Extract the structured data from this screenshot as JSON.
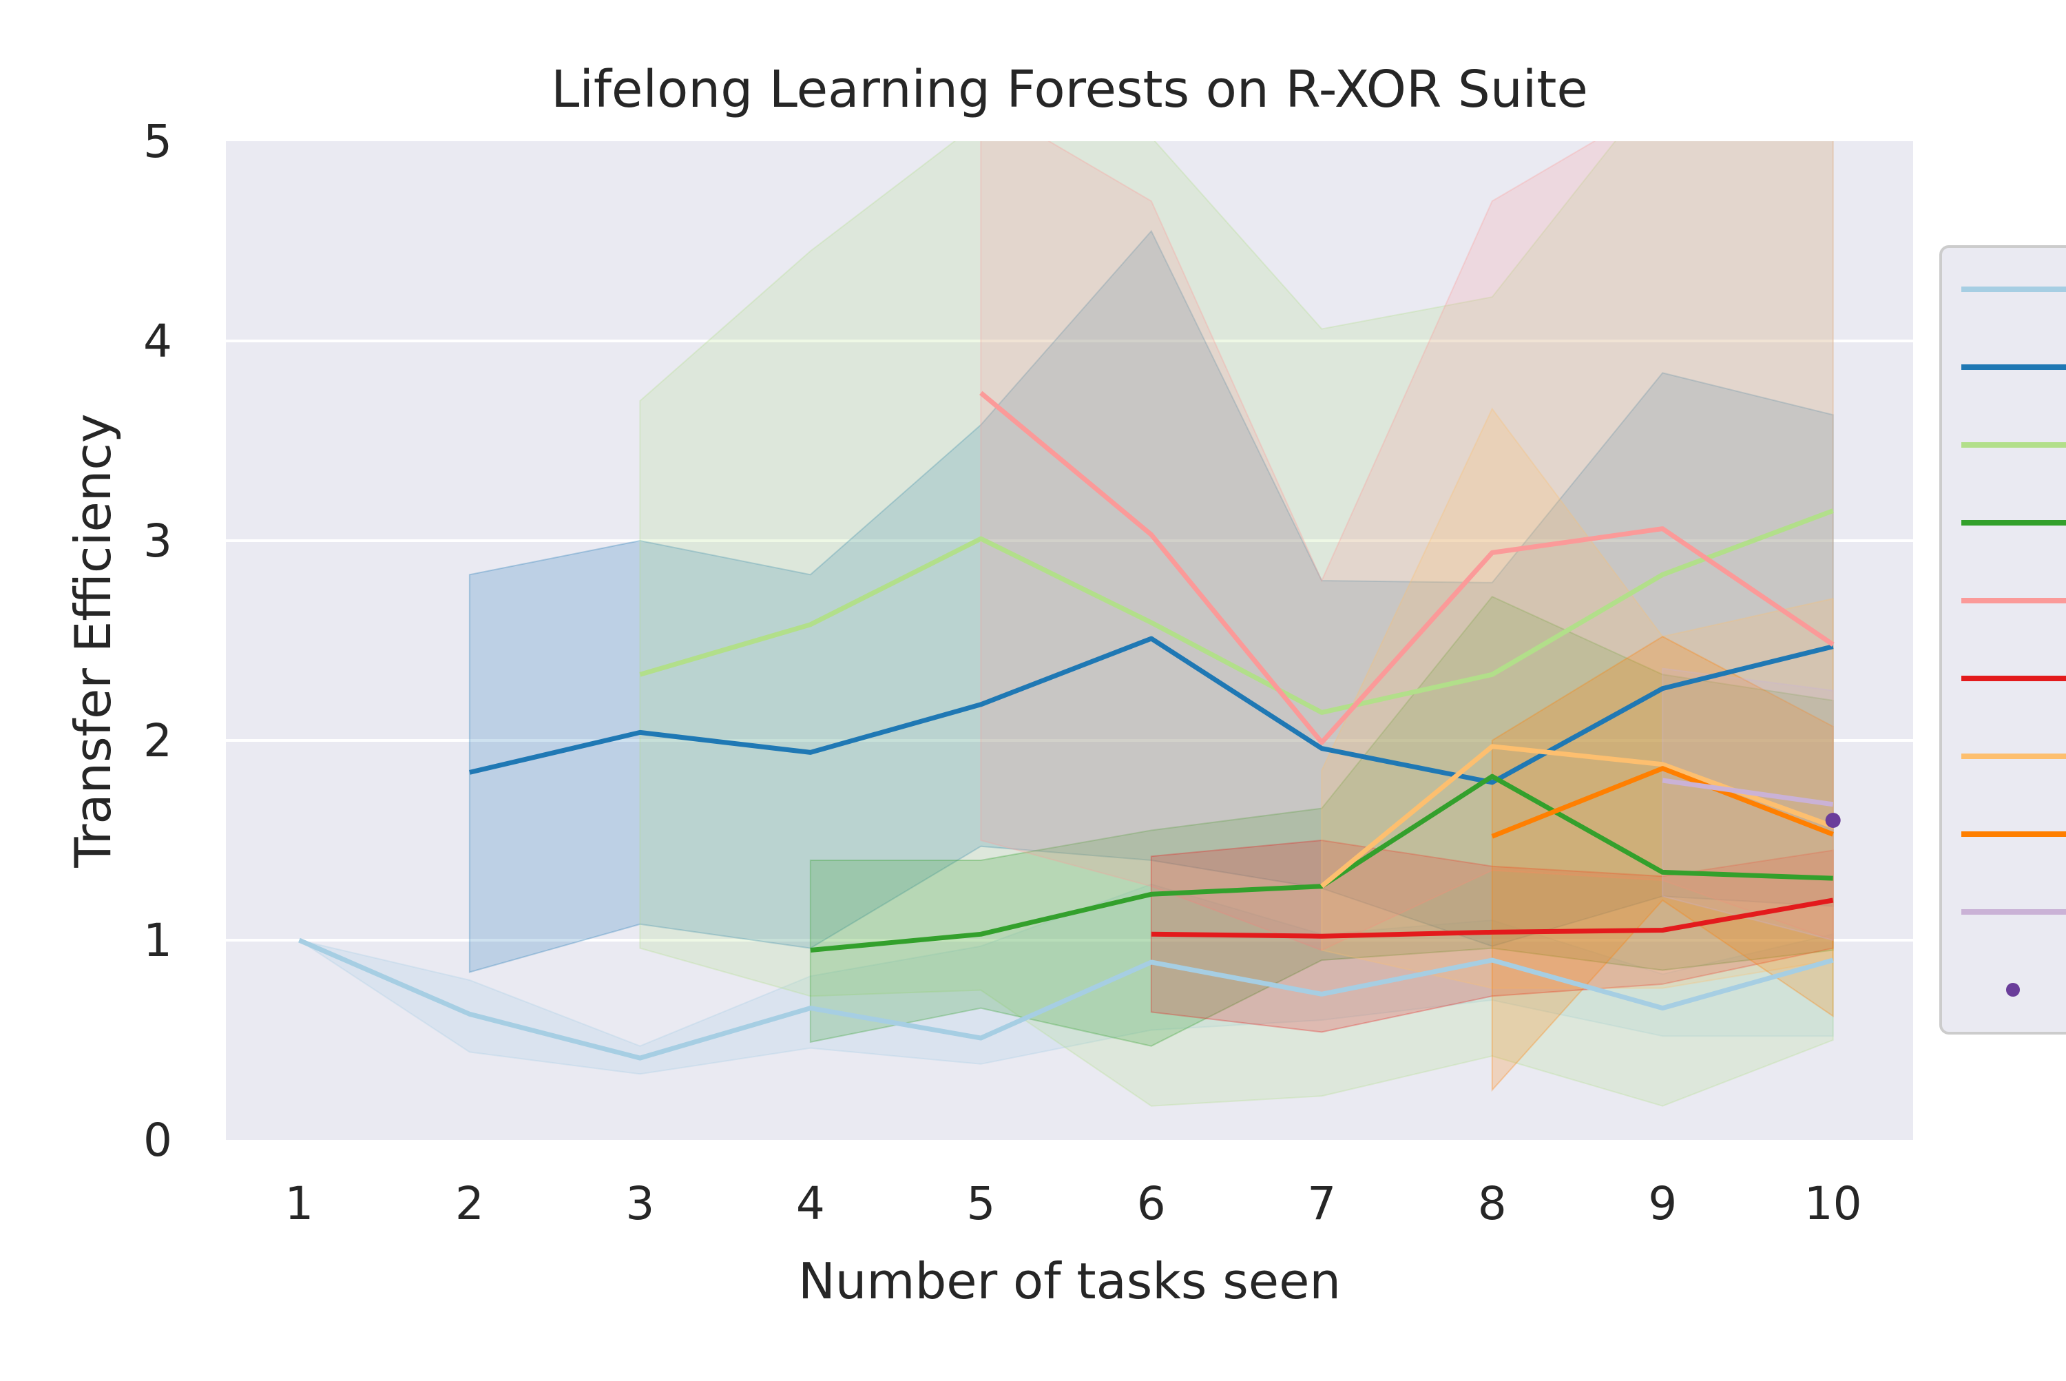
{
  "chart_data": {
    "type": "line",
    "title": "Lifelong Learning Forests on R-XOR Suite",
    "xlabel": "Number of tasks seen",
    "ylabel": "Transfer Efficiency",
    "xlim": [
      0.57,
      10.47
    ],
    "ylim": [
      0,
      5
    ],
    "xticks": [
      "1",
      "2",
      "3",
      "4",
      "5",
      "6",
      "7",
      "8",
      "9",
      "10"
    ],
    "yticks": [
      "0",
      "1",
      "2",
      "3",
      "4",
      "5"
    ],
    "grid": true,
    "legend": "right, outside plot (labels not legible)",
    "colors": {
      "plot_background": "#eaeaf2",
      "grid": "#ffffff"
    },
    "series": [
      {
        "color": "#a6cee3",
        "x": [
          1,
          2,
          3,
          4,
          5,
          6,
          7,
          8,
          9,
          10
        ],
        "values": [
          1.0,
          0.63,
          0.41,
          0.66,
          0.51,
          0.89,
          0.73,
          0.9,
          0.66,
          0.9
        ],
        "lower": [
          1.0,
          0.44,
          0.33,
          0.46,
          0.38,
          0.55,
          0.6,
          0.7,
          0.52,
          0.52
        ],
        "upper": [
          1.0,
          0.8,
          0.47,
          0.82,
          0.97,
          1.28,
          1.03,
          1.1,
          0.83,
          1.03
        ]
      },
      {
        "color": "#1f78b4",
        "x": [
          2,
          3,
          4,
          5,
          6,
          7,
          8,
          9,
          10
        ],
        "values": [
          1.84,
          2.04,
          1.94,
          2.18,
          2.51,
          1.96,
          1.79,
          2.26,
          2.47
        ],
        "lower": [
          0.84,
          1.08,
          0.96,
          1.47,
          1.4,
          1.26,
          0.97,
          1.22,
          1.17
        ],
        "upper": [
          2.83,
          3.0,
          2.83,
          3.58,
          4.55,
          2.8,
          2.79,
          3.84,
          3.63
        ]
      },
      {
        "color": "#b2df8a",
        "x": [
          3,
          4,
          5,
          6,
          7,
          8,
          9,
          10
        ],
        "values": [
          2.33,
          2.58,
          3.01,
          2.59,
          2.14,
          2.33,
          2.83,
          3.15
        ],
        "lower": [
          0.96,
          0.72,
          0.75,
          0.17,
          0.22,
          0.42,
          0.17,
          0.5
        ],
        "upper": [
          3.7,
          4.45,
          5.1,
          5.02,
          4.06,
          4.22,
          5.3,
          5.2
        ]
      },
      {
        "color": "#33a02c",
        "x": [
          4,
          5,
          6,
          7,
          8,
          9,
          10
        ],
        "values": [
          0.95,
          1.03,
          1.23,
          1.27,
          1.82,
          1.34,
          1.31
        ],
        "lower": [
          0.49,
          0.66,
          0.47,
          0.9,
          0.96,
          0.85,
          0.95
        ],
        "upper": [
          1.4,
          1.4,
          1.55,
          1.66,
          2.72,
          2.33,
          2.2
        ]
      },
      {
        "color": "#fb9a99",
        "x": [
          5,
          6,
          7,
          8,
          9,
          10
        ],
        "values": [
          3.74,
          3.03,
          1.99,
          2.94,
          3.06,
          2.48
        ],
        "lower": [
          1.5,
          1.27,
          0.95,
          1.35,
          1.3,
          1.0
        ],
        "upper": [
          5.2,
          4.7,
          2.8,
          4.7,
          5.2,
          5.2
        ]
      },
      {
        "color": "#e31a1c",
        "x": [
          6,
          7,
          8,
          9,
          10
        ],
        "values": [
          1.03,
          1.02,
          1.04,
          1.05,
          1.2
        ],
        "lower": [
          0.64,
          0.54,
          0.72,
          0.78,
          0.96
        ],
        "upper": [
          1.42,
          1.5,
          1.37,
          1.32,
          1.45
        ]
      },
      {
        "color": "#fdbf6f",
        "x": [
          7,
          8,
          9,
          10
        ],
        "values": [
          1.27,
          1.97,
          1.88,
          1.57
        ],
        "lower": [
          0.95,
          0.76,
          0.76,
          0.9
        ],
        "upper": [
          1.85,
          3.66,
          2.52,
          2.71
        ]
      },
      {
        "color": "#ff7f00",
        "x": [
          8,
          9,
          10
        ],
        "values": [
          1.52,
          1.86,
          1.53
        ],
        "lower": [
          0.25,
          1.2,
          0.62
        ],
        "upper": [
          2.0,
          2.52,
          2.07
        ]
      },
      {
        "color": "#cab2d6",
        "x": [
          9,
          10
        ],
        "values": [
          1.8,
          1.68
        ],
        "lower": [
          1.22,
          1.0
        ],
        "upper": [
          2.36,
          2.25
        ]
      },
      {
        "color": "#6a3d9a",
        "marker": "dot",
        "x": [
          10
        ],
        "values": [
          1.6
        ],
        "lower": [
          1.6
        ],
        "upper": [
          1.6
        ]
      }
    ]
  }
}
